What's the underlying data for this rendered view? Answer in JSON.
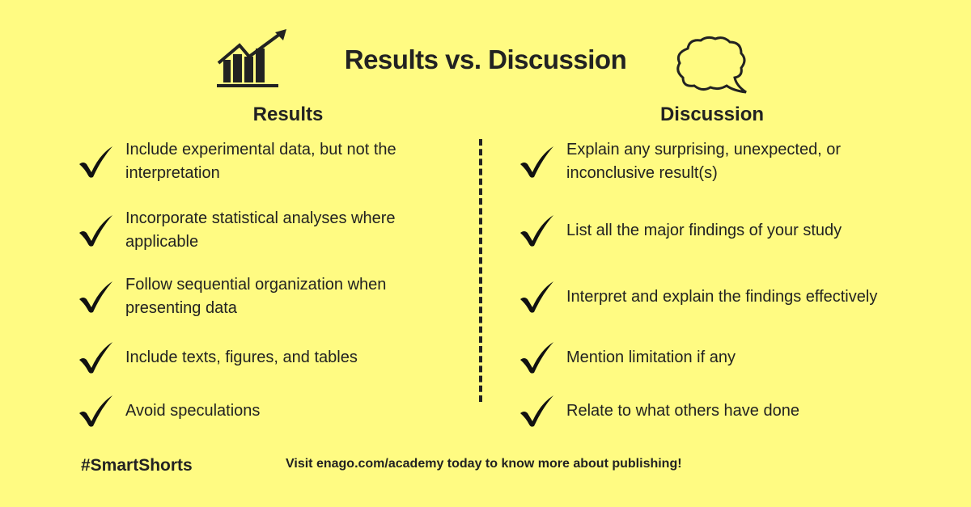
{
  "title": "Results vs. Discussion",
  "results": {
    "heading": "Results",
    "icon": "bar-chart-growth-icon",
    "items": [
      "Include experimental data, but not the interpretation",
      "Incorporate statistical analyses where applicable",
      "Follow sequential organization when presenting data",
      "Include texts, figures, and tables",
      "Avoid speculations"
    ]
  },
  "discussion": {
    "heading": "Discussion",
    "icon": "thought-bubble-icon",
    "items": [
      "Explain any surprising, unexpected, or inconclusive result(s)",
      "List all the major findings of your study",
      "Interpret and explain the findings effectively",
      "Mention limitation if any",
      "Relate to what others have done"
    ]
  },
  "footer": {
    "hashtag": "#SmartShorts",
    "cta": "Visit enago.com/academy today to know more about publishing!"
  },
  "colors": {
    "background": "#fffb82",
    "text": "#222222"
  }
}
